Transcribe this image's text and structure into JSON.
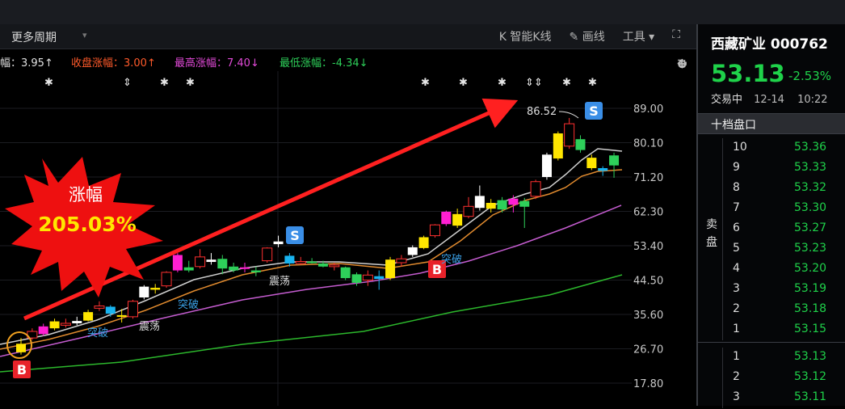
{
  "toolbar": {
    "period_label": "更多周期",
    "smart_k": "K 智能K线",
    "draw_line": "✎ 画线",
    "tools": "工具 ▾",
    "expand_icon": "expand-icon"
  },
  "stats": {
    "amp": "幅：3.95↑",
    "close_change": "收盘涨幅：3.00↑",
    "high_change": "最高涨幅：7.40↓",
    "low_change": "最低涨幅：-4.34↓",
    "colors": {
      "close": "#ff5a2a",
      "high": "#e24ad8",
      "low": "#2ed05a"
    }
  },
  "annotation": {
    "gain_title": "涨幅",
    "gain_value": "205.03%",
    "peak_label": "86.52"
  },
  "signals": {
    "buy": "B",
    "sell": "S",
    "breakout": "突破",
    "oscillate": "震荡"
  },
  "chart_data": {
    "type": "candlestick",
    "ylim": [
      17.8,
      89.0
    ],
    "y_ticks": [
      "89.00",
      "80.10",
      "71.20",
      "62.30",
      "53.40",
      "44.50",
      "35.60",
      "26.70",
      "17.80"
    ],
    "candles": [
      {
        "o": 25.8,
        "c": 28.0,
        "h": 29.5,
        "l": 25.2
      },
      {
        "o": 29.5,
        "c": 31.2,
        "h": 32.0,
        "l": 29.0
      },
      {
        "o": 30.5,
        "c": 32.5,
        "h": 33.2,
        "l": 30.0
      },
      {
        "o": 32.0,
        "c": 33.8,
        "h": 34.5,
        "l": 31.5
      },
      {
        "o": 32.8,
        "c": 33.3,
        "h": 34.5,
        "l": 32.2
      },
      {
        "o": 33.3,
        "c": 33.9,
        "h": 35.0,
        "l": 32.8
      },
      {
        "o": 34.0,
        "c": 36.2,
        "h": 36.8,
        "l": 33.8
      },
      {
        "o": 37.2,
        "c": 37.8,
        "h": 39.0,
        "l": 36.5
      },
      {
        "o": 37.6,
        "c": 35.8,
        "h": 38.0,
        "l": 35.0
      },
      {
        "o": 35.2,
        "c": 35.4,
        "h": 37.0,
        "l": 33.5
      },
      {
        "o": 35.0,
        "c": 39.0,
        "h": 39.4,
        "l": 34.5
      },
      {
        "o": 40.0,
        "c": 42.8,
        "h": 43.2,
        "l": 39.5
      },
      {
        "o": 42.0,
        "c": 42.5,
        "h": 43.5,
        "l": 41.0
      },
      {
        "o": 43.0,
        "c": 46.5,
        "h": 46.8,
        "l": 42.5
      },
      {
        "o": 47.0,
        "c": 51.0,
        "h": 51.5,
        "l": 46.5
      },
      {
        "o": 47.8,
        "c": 47.0,
        "h": 49.5,
        "l": 46.5
      },
      {
        "o": 48.0,
        "c": 50.5,
        "h": 52.5,
        "l": 47.5
      },
      {
        "o": 49.2,
        "c": 49.8,
        "h": 51.5,
        "l": 48.5
      },
      {
        "o": 50.0,
        "c": 47.5,
        "h": 51.0,
        "l": 46.0
      },
      {
        "o": 48.0,
        "c": 47.0,
        "h": 49.0,
        "l": 46.5
      },
      {
        "o": 47.5,
        "c": 47.8,
        "h": 49.0,
        "l": 46.5
      },
      {
        "o": 47.0,
        "c": 46.5,
        "h": 48.0,
        "l": 45.5
      },
      {
        "o": 49.5,
        "c": 52.8,
        "h": 53.0,
        "l": 49.0
      },
      {
        "o": 53.8,
        "c": 54.5,
        "h": 56.0,
        "l": 53.0
      },
      {
        "o": 50.8,
        "c": 48.8,
        "h": 51.5,
        "l": 48.0
      },
      {
        "o": 48.8,
        "c": 49.3,
        "h": 50.5,
        "l": 48.5
      },
      {
        "o": 49.3,
        "c": 49.2,
        "h": 50.2,
        "l": 48.8
      },
      {
        "o": 48.8,
        "c": 48.0,
        "h": 49.5,
        "l": 47.8
      },
      {
        "o": 48.0,
        "c": 48.4,
        "h": 49.0,
        "l": 47.0
      },
      {
        "o": 47.8,
        "c": 45.0,
        "h": 48.0,
        "l": 44.5
      },
      {
        "o": 46.0,
        "c": 43.8,
        "h": 46.5,
        "l": 43.0
      },
      {
        "o": 44.5,
        "c": 45.8,
        "h": 47.0,
        "l": 43.0
      },
      {
        "o": 45.5,
        "c": 44.8,
        "h": 47.0,
        "l": 42.0
      },
      {
        "o": 45.0,
        "c": 49.8,
        "h": 50.5,
        "l": 44.5
      },
      {
        "o": 49.0,
        "c": 50.0,
        "h": 51.0,
        "l": 48.0
      },
      {
        "o": 51.0,
        "c": 53.0,
        "h": 53.5,
        "l": 50.5
      },
      {
        "o": 52.8,
        "c": 55.6,
        "h": 56.0,
        "l": 52.5
      },
      {
        "o": 56.0,
        "c": 58.8,
        "h": 59.0,
        "l": 55.5
      },
      {
        "o": 59.0,
        "c": 62.2,
        "h": 62.5,
        "l": 58.5
      },
      {
        "o": 58.6,
        "c": 61.6,
        "h": 63.0,
        "l": 58.0
      },
      {
        "o": 61.0,
        "c": 63.6,
        "h": 66.0,
        "l": 60.5
      },
      {
        "o": 63.2,
        "c": 66.3,
        "h": 69.0,
        "l": 62.5
      },
      {
        "o": 63.0,
        "c": 64.5,
        "h": 65.5,
        "l": 62.0
      },
      {
        "o": 65.2,
        "c": 62.8,
        "h": 66.0,
        "l": 62.0
      },
      {
        "o": 64.0,
        "c": 65.6,
        "h": 66.5,
        "l": 62.0
      },
      {
        "o": 65.0,
        "c": 63.5,
        "h": 65.8,
        "l": 58.0
      },
      {
        "o": 66.2,
        "c": 70.0,
        "h": 70.5,
        "l": 65.5
      },
      {
        "o": 71.2,
        "c": 77.0,
        "h": 77.5,
        "l": 70.5
      },
      {
        "o": 76.0,
        "c": 82.5,
        "h": 83.0,
        "l": 75.5
      },
      {
        "o": 79.2,
        "c": 85.0,
        "h": 86.5,
        "l": 78.5
      },
      {
        "o": 81.0,
        "c": 78.2,
        "h": 82.0,
        "l": 77.5
      },
      {
        "o": 73.5,
        "c": 76.2,
        "h": 77.0,
        "l": 73.0
      },
      {
        "o": 73.5,
        "c": 72.8,
        "h": 74.0,
        "l": 71.5
      },
      {
        "o": 76.8,
        "c": 74.2,
        "h": 77.5,
        "l": 71.0
      }
    ]
  },
  "stock": {
    "name": "西藏矿业 000762",
    "price": "53.13",
    "change": "-2.53%",
    "status": "交易中",
    "date": "12-14",
    "time": "10:22"
  },
  "orderbook": {
    "title": "十档盘口",
    "sell_label": "卖盘",
    "sell": [
      {
        "level": "10",
        "price": "53.36"
      },
      {
        "level": "9",
        "price": "53.33"
      },
      {
        "level": "8",
        "price": "53.32"
      },
      {
        "level": "7",
        "price": "53.30"
      },
      {
        "level": "6",
        "price": "53.27"
      },
      {
        "level": "5",
        "price": "53.23"
      },
      {
        "level": "4",
        "price": "53.20"
      },
      {
        "level": "3",
        "price": "53.19"
      },
      {
        "level": "2",
        "price": "53.18"
      },
      {
        "level": "1",
        "price": "53.15"
      }
    ],
    "buy": [
      {
        "level": "1",
        "price": "53.13"
      },
      {
        "level": "2",
        "price": "53.12"
      },
      {
        "level": "3",
        "price": "53.11"
      }
    ]
  }
}
